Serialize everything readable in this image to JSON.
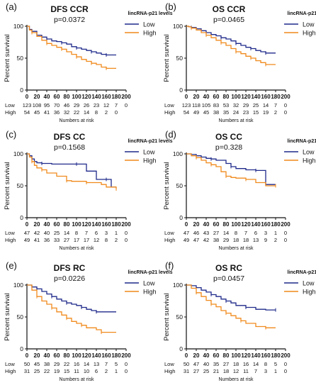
{
  "chart_data": [
    {
      "type": "line",
      "panel_label": "(a)",
      "title": "DFS CCR",
      "pvalue": "p=0.0372",
      "ylabel": "Percent survival",
      "xlabel": "",
      "legend_title": "lincRNA-p21 levels",
      "xlim": [
        0,
        200
      ],
      "ylim": [
        0,
        100
      ],
      "x_ticks": [
        "0",
        "20",
        "40",
        "60",
        "80",
        "100",
        "120",
        "140",
        "160",
        "180",
        "200"
      ],
      "y_ticks": [
        "0",
        "50",
        "100"
      ],
      "series": [
        {
          "name": "Low",
          "color": "#1f2a8a",
          "x": [
            0,
            5,
            10,
            20,
            30,
            40,
            50,
            60,
            70,
            80,
            90,
            100,
            110,
            120,
            130,
            140,
            150,
            160,
            170,
            180
          ],
          "y": [
            100,
            95,
            92,
            86,
            83,
            80,
            77,
            76,
            74,
            72,
            68,
            66,
            64,
            62,
            60,
            58,
            56,
            55,
            55,
            55
          ]
        },
        {
          "name": "High",
          "color": "#f08a1c",
          "x": [
            0,
            5,
            10,
            20,
            30,
            40,
            50,
            60,
            70,
            80,
            90,
            100,
            110,
            120,
            130,
            140,
            150,
            160,
            170,
            180
          ],
          "y": [
            100,
            94,
            90,
            84,
            78,
            73,
            70,
            67,
            64,
            60,
            56,
            52,
            48,
            45,
            42,
            40,
            36,
            34,
            34,
            34
          ]
        }
      ],
      "risk_label": "Numbers at risk",
      "risk_table": [
        {
          "group": "Low",
          "values": [
            "123",
            "108",
            "95",
            "70",
            "46",
            "29",
            "26",
            "23",
            "12",
            "7",
            "0"
          ]
        },
        {
          "group": "High",
          "values": [
            "54",
            "45",
            "41",
            "36",
            "32",
            "22",
            "14",
            "8",
            "2",
            "0",
            ""
          ]
        }
      ]
    },
    {
      "type": "line",
      "panel_label": "(b)",
      "title": "OS CCR",
      "pvalue": "p=0.0465",
      "ylabel": "Percent survival",
      "xlabel": "",
      "legend_title": "lincRNA-p21 levels",
      "xlim": [
        0,
        200
      ],
      "ylim": [
        0,
        100
      ],
      "x_ticks": [
        "0",
        "20",
        "40",
        "60",
        "80",
        "100",
        "120",
        "140",
        "160",
        "180",
        "200"
      ],
      "y_ticks": [
        "0",
        "50",
        "100"
      ],
      "series": [
        {
          "name": "Low",
          "color": "#1f2a8a",
          "x": [
            0,
            5,
            10,
            20,
            30,
            40,
            50,
            60,
            70,
            80,
            90,
            100,
            110,
            120,
            130,
            140,
            150,
            160,
            170,
            180
          ],
          "y": [
            100,
            99,
            98,
            96,
            93,
            90,
            87,
            85,
            82,
            80,
            77,
            73,
            70,
            67,
            65,
            62,
            60,
            58,
            58,
            58
          ]
        },
        {
          "name": "High",
          "color": "#f08a1c",
          "x": [
            0,
            5,
            10,
            20,
            30,
            40,
            50,
            60,
            70,
            80,
            90,
            100,
            110,
            120,
            130,
            140,
            150,
            160,
            170,
            180
          ],
          "y": [
            100,
            99,
            97,
            94,
            90,
            86,
            82,
            78,
            74,
            70,
            65,
            60,
            57,
            53,
            50,
            46,
            43,
            40,
            40,
            40
          ]
        }
      ],
      "risk_label": "Numbers at risk",
      "risk_table": [
        {
          "group": "Low",
          "values": [
            "123",
            "118",
            "105",
            "83",
            "53",
            "32",
            "29",
            "25",
            "14",
            "7",
            "0"
          ]
        },
        {
          "group": "High",
          "values": [
            "54",
            "49",
            "45",
            "38",
            "35",
            "24",
            "23",
            "15",
            "19",
            "2",
            "0"
          ]
        }
      ]
    },
    {
      "type": "line",
      "panel_label": "(c)",
      "title": "DFS CC",
      "pvalue": "p=0.1568",
      "ylabel": "Percent survival",
      "xlabel": "",
      "legend_title": "lincRNA-p21 levels",
      "xlim": [
        0,
        200
      ],
      "ylim": [
        0,
        100
      ],
      "x_ticks": [
        "0",
        "20",
        "40",
        "60",
        "80",
        "100",
        "120",
        "140",
        "160",
        "180",
        "200"
      ],
      "y_ticks": [
        "0",
        "50",
        "100"
      ],
      "series": [
        {
          "name": "Low",
          "color": "#1f2a8a",
          "x": [
            0,
            5,
            10,
            15,
            20,
            30,
            50,
            80,
            100,
            120,
            140,
            160,
            170,
            180
          ],
          "y": [
            100,
            97,
            92,
            88,
            86,
            85,
            84,
            84,
            84,
            73,
            60,
            60,
            48,
            48
          ]
        },
        {
          "name": "High",
          "color": "#f08a1c",
          "x": [
            0,
            5,
            10,
            15,
            20,
            30,
            40,
            60,
            80,
            90,
            100,
            120,
            150,
            160,
            180
          ],
          "y": [
            100,
            95,
            88,
            82,
            78,
            75,
            70,
            65,
            58,
            57,
            57,
            55,
            52,
            48,
            45
          ]
        }
      ],
      "risk_label": "Numbers at risk",
      "risk_table": [
        {
          "group": "Low",
          "values": [
            "47",
            "42",
            "40",
            "25",
            "14",
            "8",
            "7",
            "6",
            "3",
            "1",
            "0"
          ]
        },
        {
          "group": "High",
          "values": [
            "49",
            "41",
            "36",
            "33",
            "27",
            "17",
            "17",
            "12",
            "8",
            "2",
            "0"
          ]
        }
      ]
    },
    {
      "type": "line",
      "panel_label": "(d)",
      "title": "OS CC",
      "pvalue": "p=0.328",
      "ylabel": "Percent survival",
      "xlabel": "",
      "legend_title": "lincRNA-p21 levels",
      "xlim": [
        0,
        200
      ],
      "ylim": [
        0,
        100
      ],
      "x_ticks": [
        "0",
        "20",
        "40",
        "60",
        "80",
        "100",
        "120",
        "140",
        "160",
        "180",
        "200"
      ],
      "y_ticks": [
        "0",
        "50",
        "100"
      ],
      "series": [
        {
          "name": "Low",
          "color": "#1f2a8a",
          "x": [
            0,
            10,
            20,
            30,
            40,
            50,
            60,
            80,
            90,
            100,
            120,
            140,
            160,
            180
          ],
          "y": [
            100,
            99,
            97,
            95,
            93,
            92,
            90,
            85,
            80,
            77,
            75,
            74,
            52,
            52
          ]
        },
        {
          "name": "High",
          "color": "#f08a1c",
          "x": [
            0,
            10,
            20,
            30,
            40,
            50,
            60,
            70,
            80,
            90,
            100,
            120,
            140,
            160,
            180
          ],
          "y": [
            100,
            97,
            94,
            90,
            86,
            83,
            80,
            72,
            65,
            63,
            62,
            60,
            55,
            50,
            50
          ]
        }
      ],
      "risk_label": "Numbers at risk",
      "risk_table": [
        {
          "group": "Low",
          "values": [
            "47",
            "46",
            "43",
            "27",
            "14",
            "8",
            "7",
            "6",
            "3",
            "1",
            "0"
          ]
        },
        {
          "group": "High",
          "values": [
            "49",
            "47",
            "42",
            "38",
            "29",
            "18",
            "18",
            "13",
            "9",
            "2",
            "0"
          ]
        }
      ]
    },
    {
      "type": "line",
      "panel_label": "(e)",
      "title": "DFS RC",
      "pvalue": "p=0.0226",
      "ylabel": "Percent survival",
      "xlabel": "",
      "legend_title": "lincRNA-p21 levels",
      "xlim": [
        0,
        200
      ],
      "ylim": [
        0,
        100
      ],
      "x_ticks": [
        "0",
        "20",
        "40",
        "60",
        "80",
        "100",
        "120",
        "140",
        "160",
        "180",
        "200"
      ],
      "y_ticks": [
        "0",
        "50",
        "100"
      ],
      "series": [
        {
          "name": "Low",
          "color": "#1f2a8a",
          "x": [
            0,
            10,
            20,
            30,
            40,
            50,
            60,
            70,
            80,
            90,
            100,
            110,
            120,
            130,
            140,
            160,
            180
          ],
          "y": [
            100,
            97,
            94,
            90,
            86,
            82,
            78,
            75,
            72,
            70,
            68,
            65,
            62,
            60,
            58,
            58,
            58
          ]
        },
        {
          "name": "High",
          "color": "#f08a1c",
          "x": [
            0,
            10,
            20,
            30,
            40,
            50,
            60,
            70,
            80,
            90,
            100,
            110,
            120,
            140,
            150,
            160,
            180
          ],
          "y": [
            100,
            92,
            82,
            75,
            70,
            64,
            58,
            53,
            48,
            43,
            40,
            37,
            33,
            30,
            26,
            26,
            26
          ]
        }
      ],
      "risk_label": "Numbers at risk",
      "risk_table": [
        {
          "group": "Low",
          "values": [
            "50",
            "45",
            "38",
            "29",
            "22",
            "16",
            "14",
            "13",
            "7",
            "5",
            "0"
          ]
        },
        {
          "group": "High",
          "values": [
            "31",
            "25",
            "22",
            "19",
            "15",
            "11",
            "10",
            "6",
            "2",
            "1",
            "0"
          ]
        }
      ]
    },
    {
      "type": "line",
      "panel_label": "(f)",
      "title": "OS RC",
      "pvalue": "p=0.0457",
      "ylabel": "Percent survival",
      "xlabel": "",
      "legend_title": "lincRNA-p21 levels",
      "xlim": [
        0,
        200
      ],
      "ylim": [
        0,
        100
      ],
      "x_ticks": [
        "0",
        "20",
        "40",
        "60",
        "80",
        "100",
        "120",
        "140",
        "160",
        "180",
        "200"
      ],
      "y_ticks": [
        "0",
        "50",
        "100"
      ],
      "series": [
        {
          "name": "Low",
          "color": "#1f2a8a",
          "x": [
            0,
            10,
            20,
            30,
            40,
            50,
            60,
            70,
            80,
            90,
            100,
            120,
            140,
            160,
            180
          ],
          "y": [
            100,
            99,
            96,
            92,
            89,
            85,
            82,
            78,
            75,
            72,
            68,
            65,
            62,
            61,
            61
          ]
        },
        {
          "name": "High",
          "color": "#f08a1c",
          "x": [
            0,
            10,
            20,
            30,
            40,
            50,
            60,
            70,
            80,
            90,
            100,
            110,
            120,
            140,
            160,
            180
          ],
          "y": [
            100,
            95,
            88,
            82,
            76,
            70,
            66,
            60,
            56,
            52,
            48,
            44,
            40,
            35,
            33,
            33
          ]
        }
      ],
      "risk_label": "Numbers at risk",
      "risk_table": [
        {
          "group": "Low",
          "values": [
            "50",
            "47",
            "40",
            "35",
            "27",
            "18",
            "16",
            "14",
            "8",
            "5",
            "0"
          ]
        },
        {
          "group": "High",
          "values": [
            "31",
            "27",
            "25",
            "21",
            "18",
            "12",
            "11",
            "7",
            "3",
            "1",
            "0"
          ]
        }
      ]
    }
  ]
}
